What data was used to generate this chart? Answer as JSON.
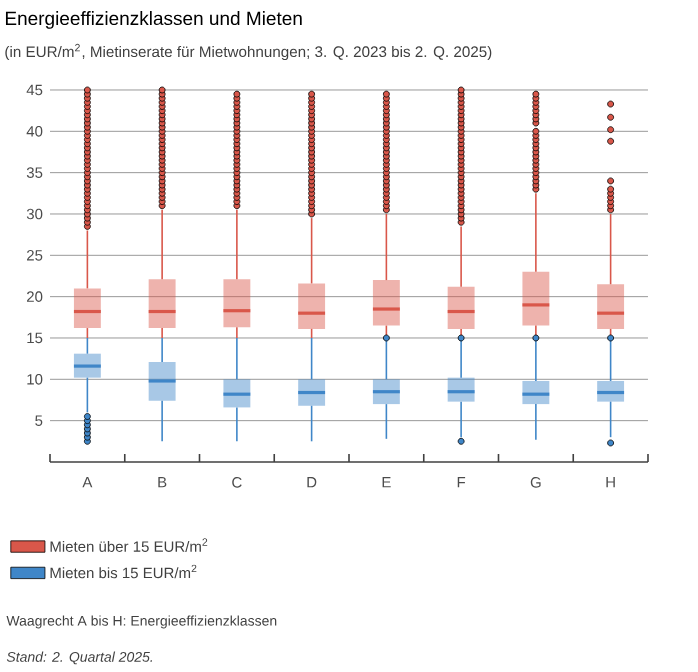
{
  "chart_data": {
    "type": "box",
    "title": "Energieeffizienzklassen und Mieten",
    "subtitle": "(in EUR/m$^{2}$, Mietinserate für Mietwohnungen; 3. Q. 2023 bis 2. Q. 2025)",
    "categories": [
      "A",
      "B",
      "C",
      "D",
      "E",
      "F",
      "G",
      "H"
    ],
    "ylim": [
      0,
      45
    ],
    "yticks": [
      5,
      10,
      15,
      20,
      25,
      30,
      35,
      40,
      45
    ],
    "grid": "y",
    "legend": "bottom",
    "annotations": [
      "Waagrecht A bis H: Energieeffizienzklassen",
      "Stand: 2. Quartal 2025."
    ],
    "series": [
      {
        "name": "Mieten über 15 EUR/m$^{2}$",
        "color": "#d9574a",
        "boxes": [
          {
            "low": 15,
            "q1": 16.2,
            "median": 18.2,
            "q3": 21.0,
            "high": 28,
            "outliers": [
              28.5,
              29,
              29.5,
              30,
              30.5,
              31,
              31.5,
              32,
              32.5,
              33,
              33.5,
              34,
              34.5,
              35,
              35.5,
              36,
              36.5,
              37,
              37.5,
              38,
              38.5,
              39,
              39.5,
              40,
              40.5,
              41,
              41.5,
              42,
              42.5,
              43,
              43.5,
              44,
              44.5,
              45
            ]
          },
          {
            "low": 15,
            "q1": 16.2,
            "median": 18.2,
            "q3": 22.1,
            "high": 30.5,
            "outliers": [
              31,
              31.5,
              32,
              32.5,
              33,
              33.5,
              34,
              34.5,
              35,
              35.5,
              36,
              36.5,
              37,
              37.5,
              38,
              38.5,
              39,
              39.5,
              40,
              40.5,
              41,
              41.5,
              42,
              42.5,
              43,
              43.5,
              44,
              44.5,
              45
            ]
          },
          {
            "low": 15,
            "q1": 16.3,
            "median": 18.3,
            "q3": 22.1,
            "high": 30.5,
            "outliers": [
              31,
              31.5,
              32,
              32.5,
              33,
              33.5,
              34,
              34.5,
              35,
              35.5,
              36,
              36.5,
              37,
              37.5,
              38,
              38.5,
              39,
              39.5,
              40,
              40.5,
              41,
              41.5,
              42,
              42.5,
              43,
              43.5,
              44,
              44.5
            ]
          },
          {
            "low": 15,
            "q1": 16.1,
            "median": 18.0,
            "q3": 21.6,
            "high": 29.5,
            "outliers": [
              30,
              30.5,
              31,
              31.5,
              32,
              32.5,
              33,
              33.5,
              34,
              34.5,
              35,
              35.5,
              36,
              36.5,
              37,
              37.5,
              38,
              38.5,
              39,
              39.5,
              40,
              40.5,
              41,
              41.5,
              42,
              42.5,
              43,
              43.5,
              44,
              44.5
            ]
          },
          {
            "low": 15,
            "q1": 16.5,
            "median": 18.5,
            "q3": 22.0,
            "high": 30,
            "outliers": [
              30.5,
              31,
              31.5,
              32,
              32.5,
              33,
              33.5,
              34,
              34.5,
              35,
              35.5,
              36,
              36.5,
              37,
              37.5,
              38,
              38.5,
              39,
              39.5,
              40,
              40.5,
              41,
              41.5,
              42,
              42.5,
              43,
              43.5,
              44,
              44.5
            ]
          },
          {
            "low": 15,
            "q1": 16.1,
            "median": 18.2,
            "q3": 21.2,
            "high": 28.5,
            "outliers": [
              29,
              29.5,
              30,
              30.5,
              31,
              31.5,
              32,
              32.5,
              33,
              33.5,
              34,
              34.5,
              35,
              35.5,
              36,
              36.5,
              37,
              37.5,
              38,
              38.5,
              39,
              39.5,
              40,
              40.5,
              41,
              41.5,
              42,
              42.5,
              43,
              43.5,
              44,
              44.5,
              45
            ]
          },
          {
            "low": 15,
            "q1": 16.5,
            "median": 19.0,
            "q3": 23.0,
            "high": 32.5,
            "outliers": [
              33,
              33.5,
              34,
              34.5,
              35,
              35.5,
              36,
              36.5,
              37,
              37.5,
              38,
              38.5,
              39,
              39.5,
              40,
              41,
              41.5,
              42,
              42.5,
              43,
              43.5,
              44,
              44.5
            ]
          },
          {
            "low": 15,
            "q1": 16.1,
            "median": 18.0,
            "q3": 21.5,
            "high": 30,
            "outliers": [
              30.5,
              31,
              31.5,
              32,
              32.5,
              33,
              34,
              38.8,
              40.2,
              41.7,
              43.3
            ]
          }
        ]
      },
      {
        "name": "Mieten bis 15 EUR/m$^{2}$",
        "color": "#3f86c8",
        "boxes": [
          {
            "low": 6,
            "q1": 10.2,
            "median": 11.6,
            "q3": 13.1,
            "high": 15,
            "outliers": [
              2.5,
              3,
              3.5,
              4,
              4.5,
              5,
              5.5
            ]
          },
          {
            "low": 2.5,
            "q1": 7.4,
            "median": 9.8,
            "q3": 12.1,
            "high": 15
          },
          {
            "low": 2.5,
            "q1": 6.6,
            "median": 8.2,
            "q3": 10.0,
            "high": 15
          },
          {
            "low": 2.5,
            "q1": 6.8,
            "median": 8.4,
            "q3": 10.0,
            "high": 15
          },
          {
            "low": 2.8,
            "q1": 7.0,
            "median": 8.5,
            "q3": 10.0,
            "high": 14.8,
            "outliers": [
              15
            ]
          },
          {
            "low": 3,
            "q1": 7.3,
            "median": 8.5,
            "q3": 10.2,
            "high": 14.8,
            "outliers": [
              2.5,
              15
            ]
          },
          {
            "low": 2.7,
            "q1": 7.0,
            "median": 8.2,
            "q3": 9.8,
            "high": 14.8,
            "outliers": [
              15
            ]
          },
          {
            "low": 3,
            "q1": 7.3,
            "median": 8.4,
            "q3": 9.8,
            "high": 14.8,
            "outliers": [
              2.3,
              15
            ]
          }
        ]
      }
    ]
  }
}
